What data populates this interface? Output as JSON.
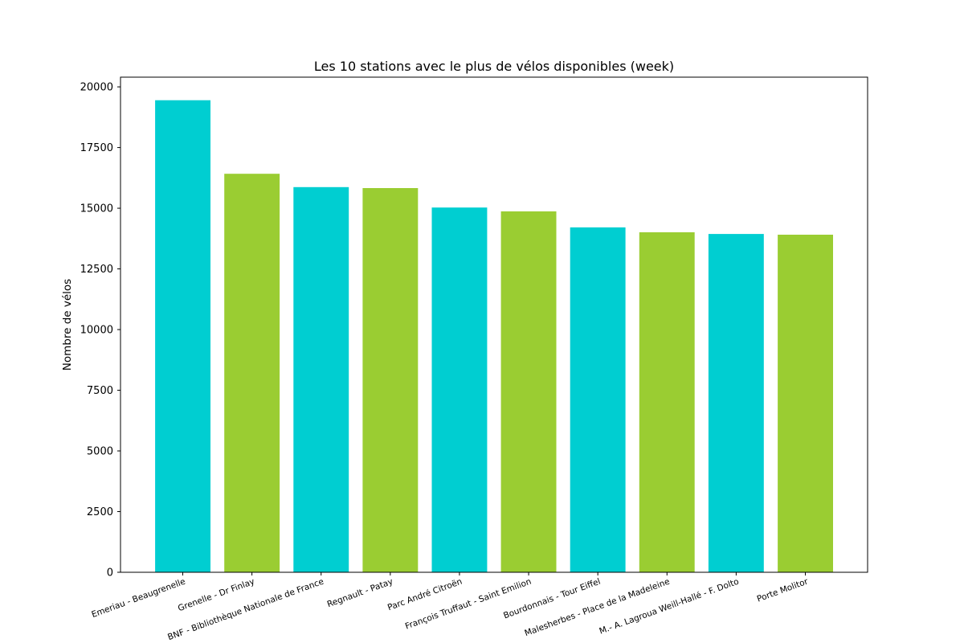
{
  "chart_data": {
    "type": "bar",
    "title": "Les 10 stations avec le plus de vélos disponibles (week)",
    "xlabel": "",
    "ylabel": "Nombre de vélos",
    "categories": [
      "Emeriau - Beaugrenelle",
      "Grenelle - Dr Finlay",
      "BNF - Bibliothèque Nationale de France",
      "Regnault - Patay",
      "Parc André Citroën",
      "François Truffaut - Saint Emilion",
      "Bourdonnais - Tour Eiffel",
      "Malesherbes - Place de la Madeleine",
      "M.- A. Lagroua Weill-Hallé -  F. Dolto",
      "Porte Molitor"
    ],
    "values": [
      19450,
      16420,
      15870,
      15830,
      15030,
      14870,
      14210,
      14010,
      13940,
      13910
    ],
    "colors": [
      "#00ced1",
      "#9acd32",
      "#00ced1",
      "#9acd32",
      "#00ced1",
      "#9acd32",
      "#00ced1",
      "#9acd32",
      "#00ced1",
      "#9acd32"
    ],
    "ylim": [
      0,
      20400
    ],
    "yticks": [
      0,
      2500,
      5000,
      7500,
      10000,
      12500,
      15000,
      17500,
      20000
    ],
    "grid": false,
    "legend": null
  }
}
